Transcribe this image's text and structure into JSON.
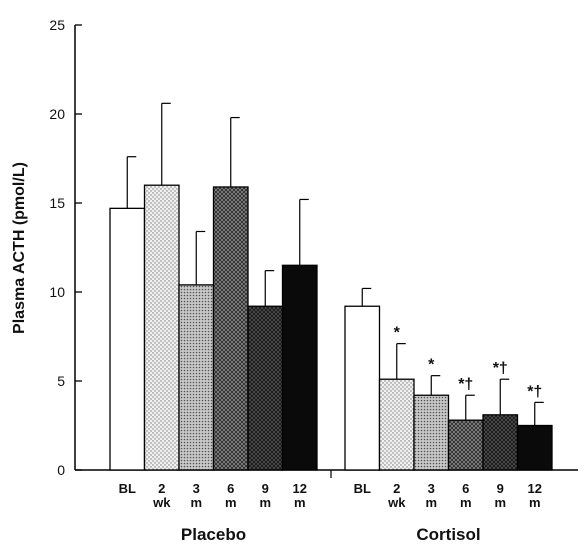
{
  "chart_data": {
    "type": "bar",
    "ylabel": "Plasma ACTH (pmol/L)",
    "ylim": [
      0,
      25
    ],
    "yticks": [
      0,
      5,
      10,
      15,
      20,
      25
    ],
    "groups": [
      {
        "name": "Placebo",
        "bars": [
          {
            "label": [
              "BL"
            ],
            "value": 14.7,
            "error": 2.9,
            "annotation": "",
            "fill": "white"
          },
          {
            "label": [
              "2",
              "wk"
            ],
            "value": 16.0,
            "error": 4.6,
            "annotation": "",
            "fill": "dots-light"
          },
          {
            "label": [
              "3",
              "m"
            ],
            "value": 10.4,
            "error": 3.0,
            "annotation": "",
            "fill": "dots-medium"
          },
          {
            "label": [
              "6",
              "m"
            ],
            "value": 15.9,
            "error": 3.9,
            "annotation": "",
            "fill": "cross-dark"
          },
          {
            "label": [
              "9",
              "m"
            ],
            "value": 9.2,
            "error": 2.0,
            "annotation": "",
            "fill": "cross-darker"
          },
          {
            "label": [
              "12",
              "m"
            ],
            "value": 11.5,
            "error": 3.7,
            "annotation": "",
            "fill": "black"
          }
        ]
      },
      {
        "name": "Cortisol",
        "bars": [
          {
            "label": [
              "BL"
            ],
            "value": 9.2,
            "error": 1.0,
            "annotation": "",
            "fill": "white"
          },
          {
            "label": [
              "2",
              "wk"
            ],
            "value": 5.1,
            "error": 2.0,
            "annotation": "*",
            "fill": "dots-light"
          },
          {
            "label": [
              "3",
              "m"
            ],
            "value": 4.2,
            "error": 1.1,
            "annotation": "*",
            "fill": "dots-medium"
          },
          {
            "label": [
              "6",
              "m"
            ],
            "value": 2.8,
            "error": 1.4,
            "annotation": "*†",
            "fill": "cross-dark"
          },
          {
            "label": [
              "9",
              "m"
            ],
            "value": 3.1,
            "error": 2.0,
            "annotation": "*†",
            "fill": "cross-darker"
          },
          {
            "label": [
              "12",
              "m"
            ],
            "value": 2.5,
            "error": 1.3,
            "annotation": "*†",
            "fill": "black"
          }
        ]
      }
    ],
    "grid": false,
    "legend": "none"
  }
}
